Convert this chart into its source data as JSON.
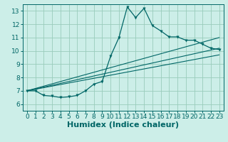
{
  "xlabel": "Humidex (Indice chaleur)",
  "bg_color": "#cceee8",
  "line_color": "#006666",
  "xlim": [
    -0.5,
    23.5
  ],
  "ylim": [
    5.5,
    13.5
  ],
  "xticks": [
    0,
    1,
    2,
    3,
    4,
    5,
    6,
    7,
    8,
    9,
    10,
    11,
    12,
    13,
    14,
    15,
    16,
    17,
    18,
    19,
    20,
    21,
    22,
    23
  ],
  "yticks": [
    6,
    7,
    8,
    9,
    10,
    11,
    12,
    13
  ],
  "main_series_x": [
    0,
    1,
    2,
    3,
    4,
    5,
    6,
    7,
    8,
    9,
    10,
    11,
    12,
    13,
    14,
    15,
    16,
    17,
    18,
    19,
    20,
    21,
    22,
    23
  ],
  "main_series_y": [
    7.0,
    7.0,
    6.65,
    6.6,
    6.5,
    6.55,
    6.65,
    7.0,
    7.5,
    7.7,
    9.6,
    11.0,
    13.3,
    12.5,
    13.2,
    11.9,
    11.5,
    11.05,
    11.05,
    10.8,
    10.8,
    10.5,
    10.2,
    10.1
  ],
  "regression_lines": [
    {
      "x": [
        0,
        23
      ],
      "y": [
        7.0,
        10.2
      ]
    },
    {
      "x": [
        0,
        23
      ],
      "y": [
        7.0,
        9.7
      ]
    },
    {
      "x": [
        0,
        23
      ],
      "y": [
        7.0,
        11.0
      ]
    }
  ],
  "grid_color": "#99ccbb",
  "tick_fontsize": 6.5,
  "xlabel_fontsize": 8
}
